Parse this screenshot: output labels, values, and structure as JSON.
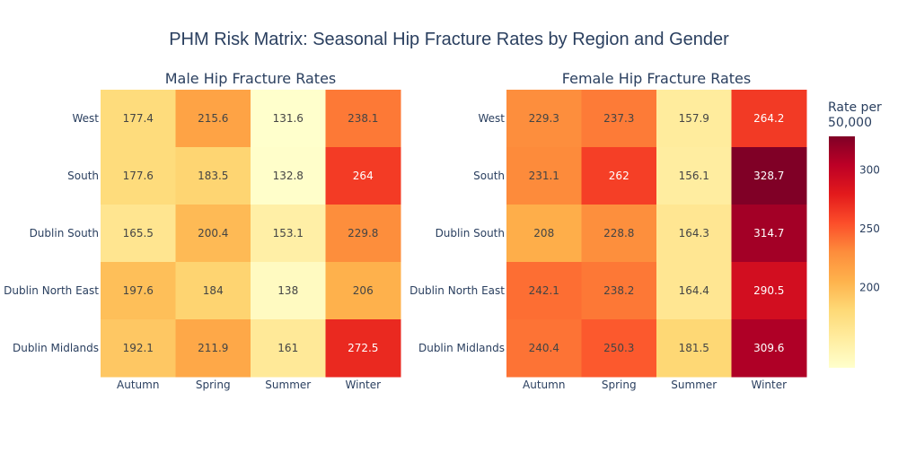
{
  "chart_data": {
    "type": "heatmap",
    "title": "PHM Risk Matrix: Seasonal Hip Fracture Rates by Region and Gender",
    "x_categories": [
      "Autumn",
      "Spring",
      "Summer",
      "Winter"
    ],
    "y_categories": [
      "West",
      "South",
      "Dublin South",
      "Dublin North East",
      "Dublin Midlands"
    ],
    "panels": [
      {
        "subtitle": "Male Hip Fracture Rates",
        "z": [
          [
            177.4,
            215.6,
            131.6,
            238.1
          ],
          [
            177.6,
            183.5,
            132.8,
            264
          ],
          [
            165.5,
            200.4,
            153.1,
            229.8
          ],
          [
            197.6,
            184,
            138,
            206
          ],
          [
            192.1,
            211.9,
            161,
            272.5
          ]
        ]
      },
      {
        "subtitle": "Female Hip Fracture Rates",
        "z": [
          [
            229.3,
            237.3,
            157.9,
            264.2
          ],
          [
            231.1,
            262,
            156.1,
            328.7
          ],
          [
            208,
            228.8,
            164.3,
            314.7
          ],
          [
            242.1,
            238.2,
            164.4,
            290.5
          ],
          [
            240.4,
            250.3,
            181.5,
            309.6
          ]
        ]
      }
    ],
    "colorbar": {
      "title_lines": [
        "Rate per",
        "50,000"
      ],
      "ticks": [
        200,
        250,
        300
      ],
      "range": [
        131.6,
        328.7
      ],
      "colorscale": "YlOrRd",
      "colors": [
        "#ffffcc",
        "#ffeda0",
        "#fed976",
        "#feb24c",
        "#fd8d3c",
        "#fc4e2a",
        "#e31a1c",
        "#bd0026",
        "#800026"
      ]
    }
  }
}
